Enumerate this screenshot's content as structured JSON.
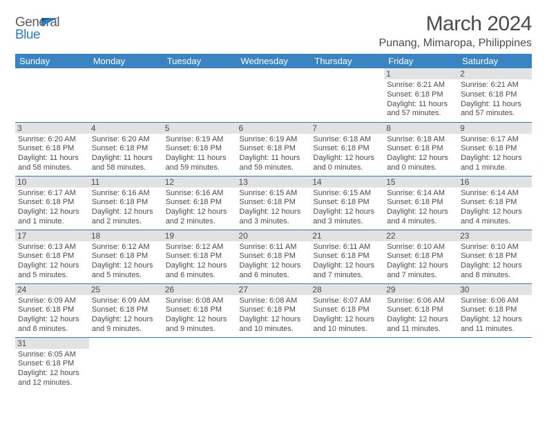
{
  "logo": {
    "line1": "General",
    "line2": "Blue"
  },
  "title": "March 2024",
  "location": "Punang, Mimaropa, Philippines",
  "colors": {
    "header_bg": "#3a84c4",
    "rule": "#2f7bbf",
    "daynum_bg": "#e2e2e2",
    "text": "#4a4a4a",
    "logo_blue": "#2f7bbf"
  },
  "weekdays": [
    "Sunday",
    "Monday",
    "Tuesday",
    "Wednesday",
    "Thursday",
    "Friday",
    "Saturday"
  ],
  "weeks": [
    [
      null,
      null,
      null,
      null,
      null,
      {
        "n": "1",
        "sr": "Sunrise: 6:21 AM",
        "ss": "Sunset: 6:18 PM",
        "dl": "Daylight: 11 hours and 57 minutes."
      },
      {
        "n": "2",
        "sr": "Sunrise: 6:21 AM",
        "ss": "Sunset: 6:18 PM",
        "dl": "Daylight: 11 hours and 57 minutes."
      }
    ],
    [
      {
        "n": "3",
        "sr": "Sunrise: 6:20 AM",
        "ss": "Sunset: 6:18 PM",
        "dl": "Daylight: 11 hours and 58 minutes."
      },
      {
        "n": "4",
        "sr": "Sunrise: 6:20 AM",
        "ss": "Sunset: 6:18 PM",
        "dl": "Daylight: 11 hours and 58 minutes."
      },
      {
        "n": "5",
        "sr": "Sunrise: 6:19 AM",
        "ss": "Sunset: 6:18 PM",
        "dl": "Daylight: 11 hours and 59 minutes."
      },
      {
        "n": "6",
        "sr": "Sunrise: 6:19 AM",
        "ss": "Sunset: 6:18 PM",
        "dl": "Daylight: 11 hours and 59 minutes."
      },
      {
        "n": "7",
        "sr": "Sunrise: 6:18 AM",
        "ss": "Sunset: 6:18 PM",
        "dl": "Daylight: 12 hours and 0 minutes."
      },
      {
        "n": "8",
        "sr": "Sunrise: 6:18 AM",
        "ss": "Sunset: 6:18 PM",
        "dl": "Daylight: 12 hours and 0 minutes."
      },
      {
        "n": "9",
        "sr": "Sunrise: 6:17 AM",
        "ss": "Sunset: 6:18 PM",
        "dl": "Daylight: 12 hours and 1 minute."
      }
    ],
    [
      {
        "n": "10",
        "sr": "Sunrise: 6:17 AM",
        "ss": "Sunset: 6:18 PM",
        "dl": "Daylight: 12 hours and 1 minute."
      },
      {
        "n": "11",
        "sr": "Sunrise: 6:16 AM",
        "ss": "Sunset: 6:18 PM",
        "dl": "Daylight: 12 hours and 2 minutes."
      },
      {
        "n": "12",
        "sr": "Sunrise: 6:16 AM",
        "ss": "Sunset: 6:18 PM",
        "dl": "Daylight: 12 hours and 2 minutes."
      },
      {
        "n": "13",
        "sr": "Sunrise: 6:15 AM",
        "ss": "Sunset: 6:18 PM",
        "dl": "Daylight: 12 hours and 3 minutes."
      },
      {
        "n": "14",
        "sr": "Sunrise: 6:15 AM",
        "ss": "Sunset: 6:18 PM",
        "dl": "Daylight: 12 hours and 3 minutes."
      },
      {
        "n": "15",
        "sr": "Sunrise: 6:14 AM",
        "ss": "Sunset: 6:18 PM",
        "dl": "Daylight: 12 hours and 4 minutes."
      },
      {
        "n": "16",
        "sr": "Sunrise: 6:14 AM",
        "ss": "Sunset: 6:18 PM",
        "dl": "Daylight: 12 hours and 4 minutes."
      }
    ],
    [
      {
        "n": "17",
        "sr": "Sunrise: 6:13 AM",
        "ss": "Sunset: 6:18 PM",
        "dl": "Daylight: 12 hours and 5 minutes."
      },
      {
        "n": "18",
        "sr": "Sunrise: 6:12 AM",
        "ss": "Sunset: 6:18 PM",
        "dl": "Daylight: 12 hours and 5 minutes."
      },
      {
        "n": "19",
        "sr": "Sunrise: 6:12 AM",
        "ss": "Sunset: 6:18 PM",
        "dl": "Daylight: 12 hours and 6 minutes."
      },
      {
        "n": "20",
        "sr": "Sunrise: 6:11 AM",
        "ss": "Sunset: 6:18 PM",
        "dl": "Daylight: 12 hours and 6 minutes."
      },
      {
        "n": "21",
        "sr": "Sunrise: 6:11 AM",
        "ss": "Sunset: 6:18 PM",
        "dl": "Daylight: 12 hours and 7 minutes."
      },
      {
        "n": "22",
        "sr": "Sunrise: 6:10 AM",
        "ss": "Sunset: 6:18 PM",
        "dl": "Daylight: 12 hours and 7 minutes."
      },
      {
        "n": "23",
        "sr": "Sunrise: 6:10 AM",
        "ss": "Sunset: 6:18 PM",
        "dl": "Daylight: 12 hours and 8 minutes."
      }
    ],
    [
      {
        "n": "24",
        "sr": "Sunrise: 6:09 AM",
        "ss": "Sunset: 6:18 PM",
        "dl": "Daylight: 12 hours and 8 minutes."
      },
      {
        "n": "25",
        "sr": "Sunrise: 6:09 AM",
        "ss": "Sunset: 6:18 PM",
        "dl": "Daylight: 12 hours and 9 minutes."
      },
      {
        "n": "26",
        "sr": "Sunrise: 6:08 AM",
        "ss": "Sunset: 6:18 PM",
        "dl": "Daylight: 12 hours and 9 minutes."
      },
      {
        "n": "27",
        "sr": "Sunrise: 6:08 AM",
        "ss": "Sunset: 6:18 PM",
        "dl": "Daylight: 12 hours and 10 minutes."
      },
      {
        "n": "28",
        "sr": "Sunrise: 6:07 AM",
        "ss": "Sunset: 6:18 PM",
        "dl": "Daylight: 12 hours and 10 minutes."
      },
      {
        "n": "29",
        "sr": "Sunrise: 6:06 AM",
        "ss": "Sunset: 6:18 PM",
        "dl": "Daylight: 12 hours and 11 minutes."
      },
      {
        "n": "30",
        "sr": "Sunrise: 6:06 AM",
        "ss": "Sunset: 6:18 PM",
        "dl": "Daylight: 12 hours and 11 minutes."
      }
    ],
    [
      {
        "n": "31",
        "sr": "Sunrise: 6:05 AM",
        "ss": "Sunset: 6:18 PM",
        "dl": "Daylight: 12 hours and 12 minutes."
      },
      null,
      null,
      null,
      null,
      null,
      null
    ]
  ]
}
